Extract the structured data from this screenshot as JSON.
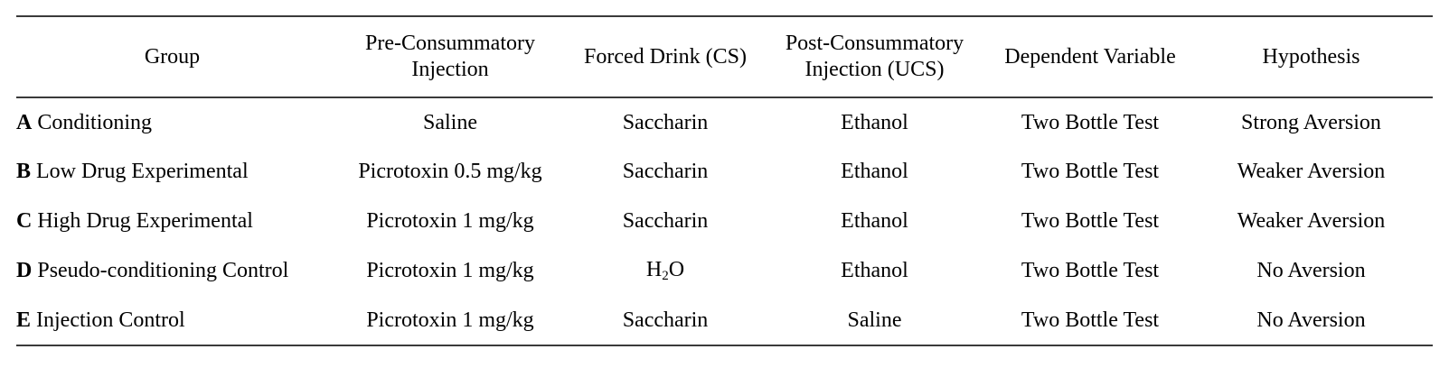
{
  "table": {
    "headers": {
      "group": "Group",
      "pre_line1": "Pre-Consummatory",
      "pre_line2": "Injection",
      "cs": "Forced Drink (CS)",
      "post_line1": "Post-Consummatory",
      "post_line2": "Injection (UCS)",
      "dv": "Dependent Variable",
      "hyp": "Hypothesis"
    },
    "rows": [
      {
        "letter": "A",
        "group": "Conditioning",
        "pre": "Saline",
        "cs": "Saccharin",
        "post": "Ethanol",
        "dv": "Two Bottle Test",
        "hyp": "Strong Aversion"
      },
      {
        "letter": "B",
        "group": "Low Drug Experimental",
        "pre": "Picrotoxin 0.5 mg/kg",
        "cs": "Saccharin",
        "post": "Ethanol",
        "dv": "Two Bottle Test",
        "hyp": "Weaker Aversion"
      },
      {
        "letter": "C",
        "group": "High Drug Experimental",
        "pre": "Picrotoxin 1 mg/kg",
        "cs": "Saccharin",
        "post": "Ethanol",
        "dv": "Two Bottle Test",
        "hyp": "Weaker Aversion"
      },
      {
        "letter": "D",
        "group": "Pseudo-conditioning Control",
        "pre": "Picrotoxin 1 mg/kg",
        "cs_main": "H",
        "cs_sub": "2",
        "cs_tail": "O",
        "post": "Ethanol",
        "dv": "Two Bottle Test",
        "hyp": "No Aversion"
      },
      {
        "letter": "E",
        "group": "Injection Control",
        "pre": "Picrotoxin 1 mg/kg",
        "cs": "Saccharin",
        "post": "Saline",
        "dv": "Two Bottle Test",
        "hyp": "No Aversion"
      }
    ]
  }
}
